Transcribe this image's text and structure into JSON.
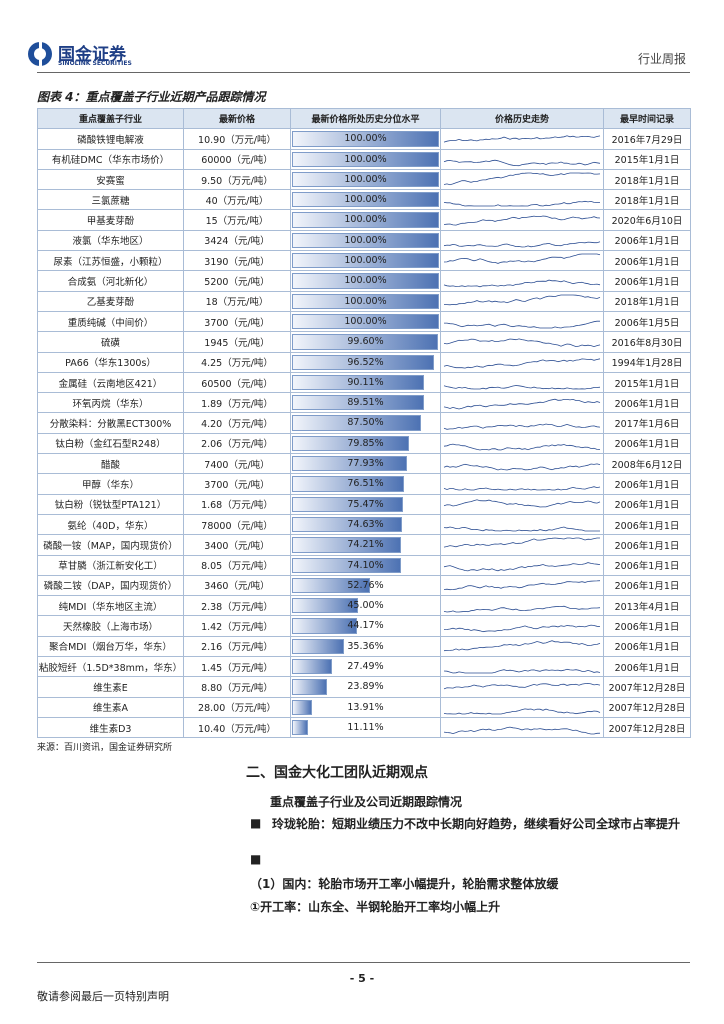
{
  "header": {
    "brand": "国金证券",
    "brand_en": "SINOLINK SECURITIES",
    "report_type": "行业周报"
  },
  "figure": {
    "title": "图表 4：重点覆盖子行业近期产品跟踪情况",
    "columns": [
      "重点覆盖子行业",
      "最新价格",
      "最新价格所处历史分位水平",
      "价格历史走势",
      "最早时间记录"
    ],
    "rows": [
      {
        "name": "磷酸铁锂电解液",
        "price": "10.90（万元/吨）",
        "pct": 100,
        "pct_label": "100.00%",
        "date": "2016年7月29日"
      },
      {
        "name": "有机硅DMC（华东市场价）",
        "price": "60000（元/吨）",
        "pct": 100,
        "pct_label": "100.00%",
        "date": "2015年1月1日"
      },
      {
        "name": "安赛蜜",
        "price": "9.50（万元/吨）",
        "pct": 100,
        "pct_label": "100.00%",
        "date": "2018年1月1日"
      },
      {
        "name": "三氯蔗糖",
        "price": "40（万元/吨）",
        "pct": 100,
        "pct_label": "100.00%",
        "date": "2018年1月1日"
      },
      {
        "name": "甲基麦芽酚",
        "price": "15（万元/吨）",
        "pct": 100,
        "pct_label": "100.00%",
        "date": "2020年6月10日"
      },
      {
        "name": "液氯（华东地区）",
        "price": "3424（元/吨）",
        "pct": 100,
        "pct_label": "100.00%",
        "date": "2006年1月1日"
      },
      {
        "name": "尿素（江苏恒盛，小颗粒）",
        "price": "3190（元/吨）",
        "pct": 100,
        "pct_label": "100.00%",
        "date": "2006年1月1日"
      },
      {
        "name": "合成氨（河北新化）",
        "price": "5200（元/吨）",
        "pct": 100,
        "pct_label": "100.00%",
        "date": "2006年1月1日"
      },
      {
        "name": "乙基麦芽酚",
        "price": "18（万元/吨）",
        "pct": 100,
        "pct_label": "100.00%",
        "date": "2018年1月1日"
      },
      {
        "name": "重质纯碱（中间价）",
        "price": "3700（元/吨）",
        "pct": 100,
        "pct_label": "100.00%",
        "date": "2006年1月5日"
      },
      {
        "name": "硫磺",
        "price": "1945（元/吨）",
        "pct": 99.6,
        "pct_label": "99.60%",
        "date": "2016年8月30日"
      },
      {
        "name": "PA66（华东1300s）",
        "price": "4.25（万元/吨）",
        "pct": 96.52,
        "pct_label": "96.52%",
        "date": "1994年1月28日"
      },
      {
        "name": "金属硅（云南地区421）",
        "price": "60500（元/吨）",
        "pct": 90.11,
        "pct_label": "90.11%",
        "date": "2015年1月1日"
      },
      {
        "name": "环氧丙烷（华东）",
        "price": "1.89（万元/吨）",
        "pct": 89.51,
        "pct_label": "89.51%",
        "date": "2006年1月1日"
      },
      {
        "name": "分散染料：分散黑ECT300%",
        "price": "4.20（万元/吨）",
        "pct": 87.5,
        "pct_label": "87.50%",
        "date": "2017年1月6日"
      },
      {
        "name": "钛白粉（金红石型R248）",
        "price": "2.06（万元/吨）",
        "pct": 79.85,
        "pct_label": "79.85%",
        "date": "2006年1月1日"
      },
      {
        "name": "醋酸",
        "price": "7400（元/吨）",
        "pct": 77.93,
        "pct_label": "77.93%",
        "date": "2008年6月12日"
      },
      {
        "name": "甲醇（华东）",
        "price": "3700（元/吨）",
        "pct": 76.51,
        "pct_label": "76.51%",
        "date": "2006年1月1日"
      },
      {
        "name": "钛白粉（锐钛型PTA121）",
        "price": "1.68（万元/吨）",
        "pct": 75.47,
        "pct_label": "75.47%",
        "date": "2006年1月1日"
      },
      {
        "name": "氨纶（40D，华东）",
        "price": "78000（元/吨）",
        "pct": 74.63,
        "pct_label": "74.63%",
        "date": "2006年1月1日"
      },
      {
        "name": "磷酸一铵（MAP，国内现货价）",
        "price": "3400（元/吨）",
        "pct": 74.21,
        "pct_label": "74.21%",
        "date": "2006年1月1日"
      },
      {
        "name": "草甘膦（浙江新安化工）",
        "price": "8.05（万元/吨）",
        "pct": 74.1,
        "pct_label": "74.10%",
        "date": "2006年1月1日"
      },
      {
        "name": "磷酸二铵（DAP，国内现货价）",
        "price": "3460（元/吨）",
        "pct": 52.76,
        "pct_label": "52.76%",
        "date": "2006年1月1日"
      },
      {
        "name": "纯MDI（华东地区主流）",
        "price": "2.38（万元/吨）",
        "pct": 45,
        "pct_label": "45.00%",
        "date": "2013年4月1日"
      },
      {
        "name": "天然橡胶（上海市场）",
        "price": "1.42（万元/吨）",
        "pct": 44.17,
        "pct_label": "44.17%",
        "date": "2006年1月1日"
      },
      {
        "name": "聚合MDI（烟台万华，华东）",
        "price": "2.16（万元/吨）",
        "pct": 35.36,
        "pct_label": "35.36%",
        "date": "2006年1月1日"
      },
      {
        "name": "粘胶短纤（1.5D*38mm，华东）",
        "price": "1.45（万元/吨）",
        "pct": 27.49,
        "pct_label": "27.49%",
        "date": "2006年1月1日"
      },
      {
        "name": "维生素E",
        "price": "8.80（万元/吨）",
        "pct": 23.89,
        "pct_label": "23.89%",
        "date": "2007年12月28日"
      },
      {
        "name": "维生素A",
        "price": "28.00（万元/吨）",
        "pct": 13.91,
        "pct_label": "13.91%",
        "date": "2007年12月28日"
      },
      {
        "name": "维生素D3",
        "price": "10.40（万元/吨）",
        "pct": 11.11,
        "pct_label": "11.11%",
        "date": "2007年12月28日"
      }
    ],
    "source": "来源：百川资讯，国金证券研究所"
  },
  "body": {
    "section": "二、国金大化工团队近期观点",
    "subtitle": "重点覆盖子行业及公司近期跟踪情况",
    "bullet1": "玲珑轮胎：短期业绩压力不改中长期向好趋势，继续看好公司全球市占率提升",
    "para1": "（1）国内：轮胎市场开工率小幅提升，轮胎需求整体放缓",
    "para2": "①开工率：山东全、半钢轮胎开工率均小幅上升"
  },
  "footer": {
    "page": "- 5 -",
    "note": "敬请参阅最后一页特别声明"
  }
}
